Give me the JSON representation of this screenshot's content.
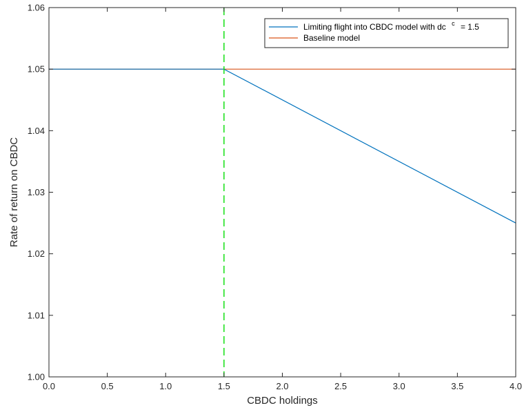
{
  "chart_data": {
    "type": "line",
    "xlabel": "CBDC holdings",
    "ylabel": "Rate of return on CBDC",
    "xlim": [
      0,
      4
    ],
    "ylim": [
      1.0,
      1.06
    ],
    "x_ticks": [
      0,
      0.5,
      1,
      1.5,
      2,
      2.5,
      3,
      3.5,
      4
    ],
    "x_tick_labels": [
      "0.0",
      "0.5",
      "1.0",
      "1.5",
      "2.0",
      "2.5",
      "3.0",
      "3.5",
      "4.0"
    ],
    "y_ticks": [
      1.0,
      1.01,
      1.02,
      1.03,
      1.04,
      1.05,
      1.06
    ],
    "y_tick_labels": [
      "1.00",
      "1.01",
      "1.02",
      "1.03",
      "1.04",
      "1.05",
      "1.06"
    ],
    "grid": false,
    "legend_position": "top-right",
    "series": [
      {
        "name": "Limiting flight into CBDC model with dc",
        "name_superscript": "c",
        "name_suffix": "= 1.5",
        "color": "#0072BD",
        "x": [
          0,
          1.5,
          4
        ],
        "y": [
          1.05,
          1.05,
          1.025
        ]
      },
      {
        "name": "Baseline model",
        "color": "#D95319",
        "x": [
          0,
          4
        ],
        "y": [
          1.05,
          1.05
        ]
      }
    ],
    "vertical_line": {
      "x": 1.5,
      "color": "#00DD00",
      "style": "dashed"
    }
  }
}
